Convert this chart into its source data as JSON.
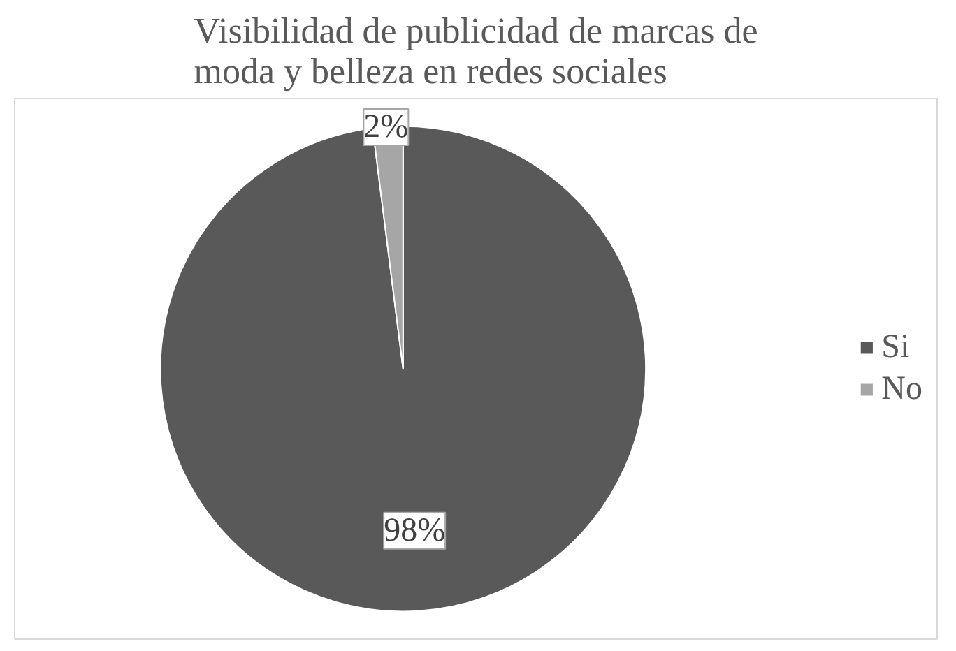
{
  "chart_data": {
    "type": "pie",
    "title": "Visibilidad de publicidad de marcas de\nmoda y belleza en redes sociales",
    "categories": [
      "Si",
      "No"
    ],
    "values": [
      98,
      2
    ],
    "colors": [
      "#595959",
      "#a6a6a6"
    ],
    "value_labels": [
      "98%",
      "2%"
    ],
    "legend": "right"
  }
}
